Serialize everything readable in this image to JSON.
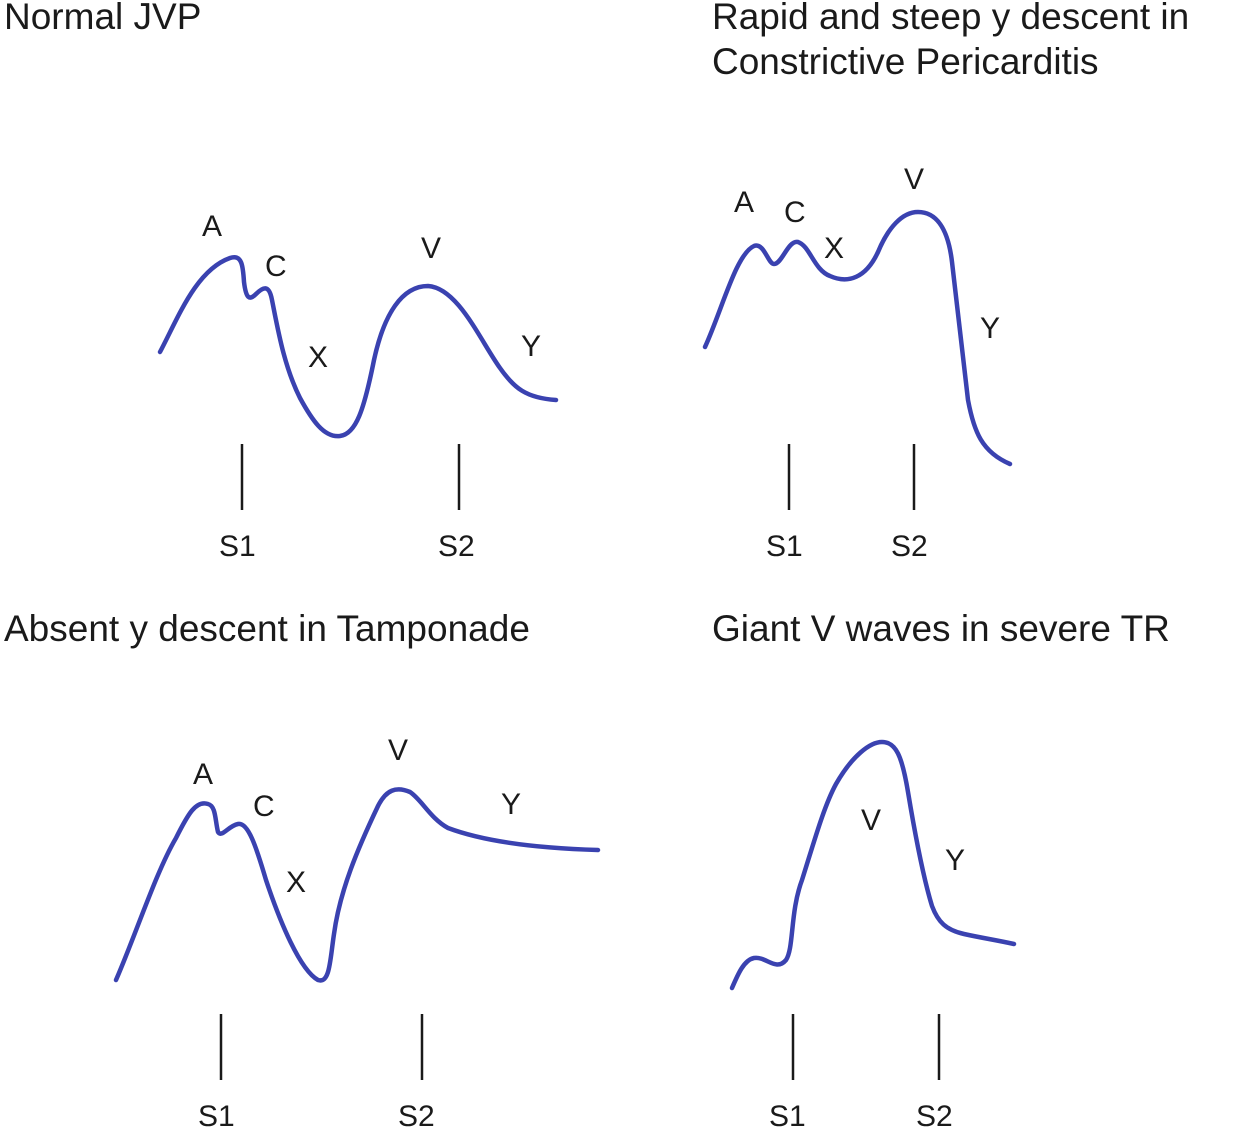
{
  "colors": {
    "waveform": "#3a42b0",
    "text": "#1a1a1a",
    "background": "#ffffff"
  },
  "panels": {
    "normal": {
      "title": "Normal JVP",
      "waves": {
        "a": "A",
        "c": "C",
        "x": "X",
        "v": "V",
        "y": "Y"
      },
      "sounds": {
        "s1": "S1",
        "s2": "S2"
      }
    },
    "constrictive": {
      "title_line1": "Rapid and steep y descent in",
      "title_line2": "Constrictive Pericarditis",
      "waves": {
        "a": "A",
        "c": "C",
        "x": "X",
        "v": "V",
        "y": "Y"
      },
      "sounds": {
        "s1": "S1",
        "s2": "S2"
      }
    },
    "tamponade": {
      "title": "Absent y descent in Tamponade",
      "waves": {
        "a": "A",
        "c": "C",
        "x": "X",
        "v": "V",
        "y": "Y"
      },
      "sounds": {
        "s1": "S1",
        "s2": "S2"
      }
    },
    "tr": {
      "title": "Giant V waves in severe TR",
      "waves": {
        "v": "V",
        "y": "Y"
      },
      "sounds": {
        "s1": "S1",
        "s2": "S2"
      }
    }
  }
}
